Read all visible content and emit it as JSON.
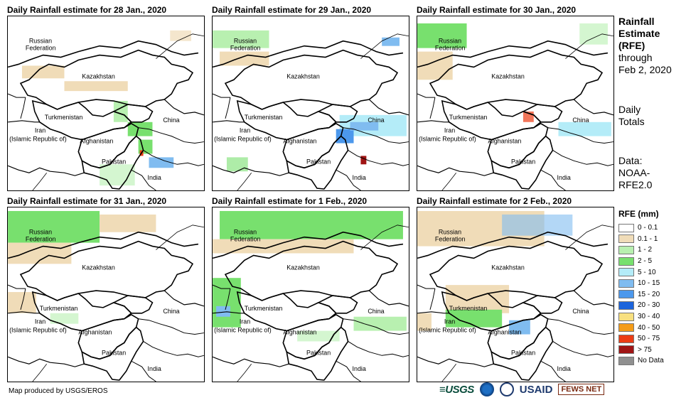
{
  "panels": [
    {
      "title": "Daily Rainfall estimate for 28 Jan., 2020"
    },
    {
      "title": "Daily Rainfall estimate for 29 Jan., 2020"
    },
    {
      "title": "Daily Rainfall estimate for 30 Jan., 2020"
    },
    {
      "title": "Daily Rainfall estimate for 31 Jan., 2020"
    },
    {
      "title": "Daily Rainfall estimate for 1 Feb., 2020"
    },
    {
      "title": "Daily Rainfall estimate for 2 Feb., 2020"
    }
  ],
  "countries": {
    "russia_1": "Russian",
    "russia_2": "Federation",
    "kazakhstan": "Kazakhstan",
    "turkmenistan": "Turkmenistan",
    "china": "China",
    "iran_1": "Iran",
    "iran_2": "(Islamic Republic of)",
    "afghanistan": "Afghanistan",
    "pakistan": "Pakistan",
    "india": "India"
  },
  "side": {
    "line1": "Rainfall",
    "line2": "Estimate",
    "line3": "(RFE)",
    "line4": "through",
    "line5": "Feb 2, 2020",
    "daily1": "Daily",
    "daily2": "Totals",
    "data1": "Data:",
    "data2": "NOAA-",
    "data3": "RFE2.0"
  },
  "legend": {
    "title": "RFE (mm)",
    "items": [
      {
        "label": "0 - 0.1",
        "color": "#ffffff"
      },
      {
        "label": "0.1 - 1",
        "color": "#f0dcb8"
      },
      {
        "label": "1 - 2",
        "color": "#b8f0b0"
      },
      {
        "label": "2 - 5",
        "color": "#78e06e"
      },
      {
        "label": "5 - 10",
        "color": "#b4ecf8"
      },
      {
        "label": "10 - 15",
        "color": "#80bcf0"
      },
      {
        "label": "15 - 20",
        "color": "#4c98ec"
      },
      {
        "label": "20 - 30",
        "color": "#1c64dc"
      },
      {
        "label": "30 - 40",
        "color": "#f8e080"
      },
      {
        "label": "40 - 50",
        "color": "#f49c18"
      },
      {
        "label": "50 - 75",
        "color": "#ec3c14"
      },
      {
        "label": "> 75",
        "color": "#a01414"
      },
      {
        "label": "No Data",
        "color": "#909090"
      }
    ]
  },
  "credit": "Map produced by USGS/EROS",
  "logos": {
    "usgs": "≡USGS",
    "usaid": "USAID",
    "fews": "FEWS NET"
  }
}
